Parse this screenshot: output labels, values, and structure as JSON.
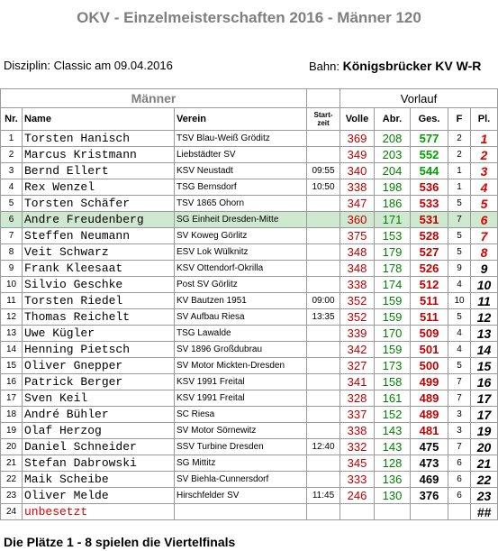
{
  "title": "OKV - Einzelmeisterschaften 2016 - Männer 120",
  "disziplin": "Disziplin: Classic   am 09.04.2016",
  "bahn_label": "Bahn:",
  "bahn": "Königsbrücker KV W-R",
  "table": {
    "group_left": "Männer",
    "group_right": "Vorlauf",
    "headers": [
      "Nr.",
      "Name",
      "Verein",
      "Start- zeit",
      "Volle",
      "Abr.",
      "Ges.",
      "F",
      "Pl."
    ],
    "rows": [
      {
        "nr": 1,
        "name": "Torsten Hanisch",
        "verein": "TSV Blau-Weiß Gröditz",
        "volle": 369,
        "abr": 208,
        "ges": 577,
        "f": 2,
        "pl": 1
      },
      {
        "nr": 2,
        "name": "Marcus Kristmann",
        "verein": "Liebstädter SV",
        "volle": 349,
        "abr": 203,
        "ges": 552,
        "f": 2,
        "pl": 2
      },
      {
        "nr": 3,
        "name": "Bernd Ellert",
        "verein": "KSV Neustadt",
        "startzeit": "09:55",
        "volle": 340,
        "abr": 204,
        "ges": 544,
        "f": 1,
        "pl": 3
      },
      {
        "nr": 4,
        "name": "Rex Wenzel",
        "verein": "TSG Bernsdorf",
        "startzeit": "10:50",
        "volle": 338,
        "abr": 198,
        "ges": 536,
        "f": 1,
        "pl": 4
      },
      {
        "nr": 5,
        "name": "Torsten Schäfer",
        "verein": "TSV 1865 Ohorn",
        "volle": 347,
        "abr": 186,
        "ges": 533,
        "f": 5,
        "pl": 5
      },
      {
        "nr": 6,
        "name": "Andre Freudenberg",
        "verein": "SG Einheit Dresden-Mitte",
        "volle": 360,
        "abr": 171,
        "ges": 531,
        "f": 7,
        "pl": 6
      },
      {
        "nr": 7,
        "name": "Steffen Neumann",
        "verein": "SV Koweg Görlitz",
        "volle": 375,
        "abr": 153,
        "ges": 528,
        "f": 5,
        "pl": 7
      },
      {
        "nr": 8,
        "name": "Veit Schwarz",
        "verein": "ESV Lok Wülknitz",
        "volle": 348,
        "abr": 179,
        "ges": 527,
        "f": 5,
        "pl": 8
      },
      {
        "nr": 9,
        "name": "Frank Kleesaat",
        "verein": "KSV Ottendorf-Okrilla",
        "volle": 348,
        "abr": 178,
        "ges": 526,
        "f": 9,
        "pl": 9
      },
      {
        "nr": 10,
        "name": "Silvio Geschke",
        "verein": "Post SV Görlitz",
        "volle": 338,
        "abr": 174,
        "ges": 512,
        "f": 4,
        "pl": 10
      },
      {
        "nr": 11,
        "name": "Torsten Riedel",
        "verein": "KV Bautzen 1951",
        "startzeit": "09:00",
        "volle": 352,
        "abr": 159,
        "ges": 511,
        "f": 10,
        "pl": 11
      },
      {
        "nr": 12,
        "name": "Thomas Reichelt",
        "verein": "SV Aufbau Riesa",
        "startzeit": "13:35",
        "volle": 352,
        "abr": 159,
        "ges": 511,
        "f": 5,
        "pl": 12
      },
      {
        "nr": 13,
        "name": "Uwe Kügler",
        "verein": "TSG Lawalde",
        "volle": 339,
        "abr": 170,
        "ges": 509,
        "f": 4,
        "pl": 13
      },
      {
        "nr": 14,
        "name": "Henning Pietsch",
        "verein": "SV 1896 Großdubrau",
        "volle": 342,
        "abr": 159,
        "ges": 501,
        "f": 4,
        "pl": 14
      },
      {
        "nr": 15,
        "name": "Oliver Gnepper",
        "verein": "SV Motor Mickten-Dresden",
        "volle": 327,
        "abr": 173,
        "ges": 500,
        "f": 5,
        "pl": 15
      },
      {
        "nr": 16,
        "name": "Patrick Berger",
        "verein": "KSV 1991 Freital",
        "volle": 341,
        "abr": 158,
        "ges": 499,
        "f": 7,
        "pl": 16
      },
      {
        "nr": 17,
        "name": "Sven Keil",
        "verein": "KSV 1991 Freital",
        "volle": 328,
        "abr": 161,
        "ges": 489,
        "f": 7,
        "pl": 17
      },
      {
        "nr": 18,
        "name": "André Bühler",
        "verein": "SC Riesa",
        "volle": 337,
        "abr": 152,
        "ges": 489,
        "f": 3,
        "pl": 17
      },
      {
        "nr": 19,
        "name": "Olaf Herzog",
        "verein": "SV Motor Sörnewitz",
        "volle": 338,
        "abr": 143,
        "ges": 481,
        "f": 3,
        "pl": 19
      },
      {
        "nr": 20,
        "name": "Daniel Schneider",
        "verein": "SSV Turbine Dresden",
        "startzeit": "12:40",
        "volle": 332,
        "abr": 143,
        "ges": 475,
        "f": 7,
        "pl": 20
      },
      {
        "nr": 21,
        "name": "Stefan Dabrowski",
        "verein": "SG Mittitz",
        "volle": 345,
        "abr": 128,
        "ges": 473,
        "f": 6,
        "pl": 21
      },
      {
        "nr": 22,
        "name": "Maik Scheibe",
        "verein": "SV Biehla-Cunnersdorf",
        "volle": 333,
        "abr": 136,
        "ges": 469,
        "f": 6,
        "pl": 22
      },
      {
        "nr": 23,
        "name": "Oliver Melde",
        "verein": "Hirschfelder SV",
        "startzeit": "11:45",
        "volle": 246,
        "abr": 130,
        "ges": 376,
        "f": 6,
        "pl": 23
      },
      {
        "nr": 24,
        "name": "unbesetzt",
        "pl": "##"
      }
    ],
    "highlight_nr": 6,
    "colors": {
      "volle": "#c00000",
      "abr": "#008000",
      "ges_top": "#00a000",
      "ges_mid": "#c00000",
      "qualified": "#e00000",
      "vacant": "#e00000",
      "highlight": "#cfe8d0"
    }
  },
  "footer": "Die Plätze 1 - 8 spielen die Viertelfinals"
}
